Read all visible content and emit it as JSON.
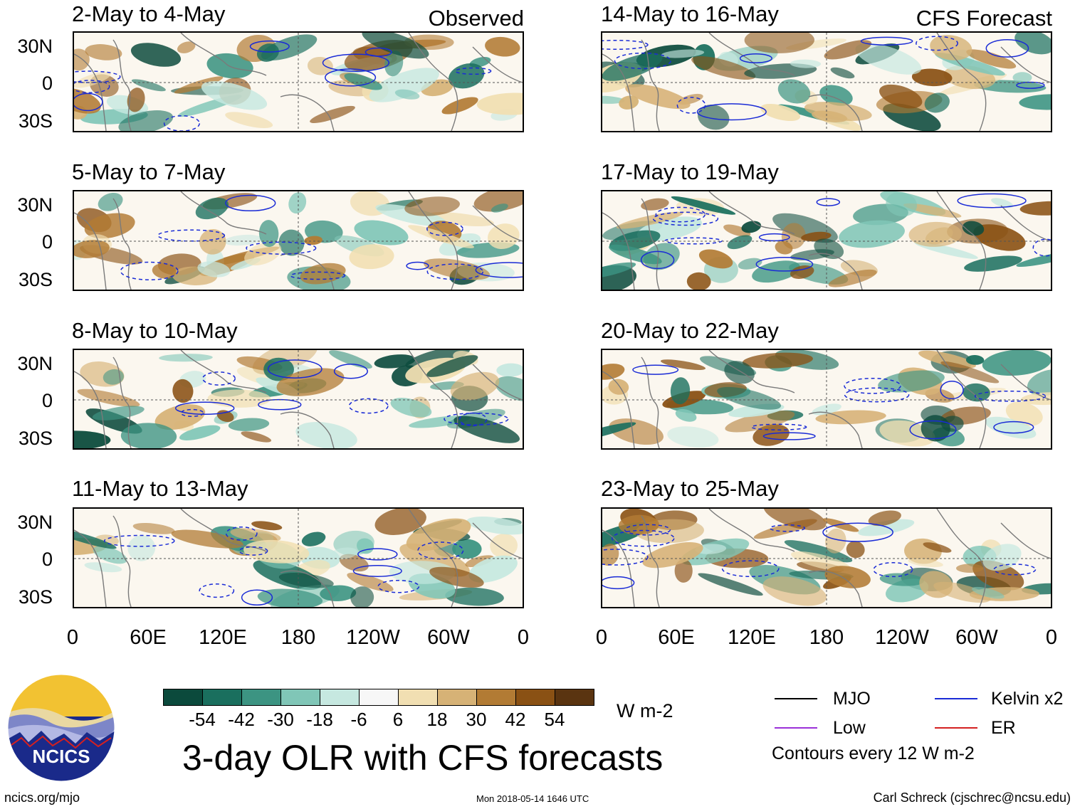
{
  "observed_label": "Observed",
  "forecast_label": "CFS Forecast",
  "panels_left": [
    {
      "title": "2-May to 4-May"
    },
    {
      "title": "5-May to 7-May"
    },
    {
      "title": "8-May to 10-May"
    },
    {
      "title": "11-May to 13-May"
    }
  ],
  "panels_right": [
    {
      "title": "14-May to 16-May"
    },
    {
      "title": "17-May to 19-May"
    },
    {
      "title": "20-May to 22-May"
    },
    {
      "title": "23-May to 25-May"
    }
  ],
  "lat_labels": [
    "30N",
    "0",
    "30S"
  ],
  "lon_labels": [
    "0",
    "60E",
    "120E",
    "180",
    "120W",
    "60W",
    "0"
  ],
  "colorbar": {
    "ticks": [
      "-54",
      "-42",
      "-30",
      "-18",
      "-6",
      "6",
      "18",
      "30",
      "42",
      "54"
    ],
    "colors": [
      "#0b4a3c",
      "#1a6f5e",
      "#3c9482",
      "#80c6b7",
      "#c6e8e0",
      "#f7f7f7",
      "#f1dfb2",
      "#d6b276",
      "#b27b34",
      "#8a5114",
      "#5a3410"
    ],
    "units": "W m-2"
  },
  "main_title": "3-day OLR with CFS forecasts",
  "legend": {
    "mjo": "MJO",
    "kelvin": "Kelvin x2",
    "low": "Low",
    "er": "ER",
    "mjo_color": "#000000",
    "kelvin_color": "#1a2bd6",
    "low_color": "#9a30d8",
    "er_color": "#d42020",
    "contour_note": "Contours every 12 W m-2"
  },
  "logo_text": "NCICS",
  "footer": {
    "url": "ncics.org/mjo",
    "timestamp": "Mon 2018-05-14 1646 UTC",
    "credit": "Carl Schreck (cjschrec@ncsu.edu)"
  }
}
